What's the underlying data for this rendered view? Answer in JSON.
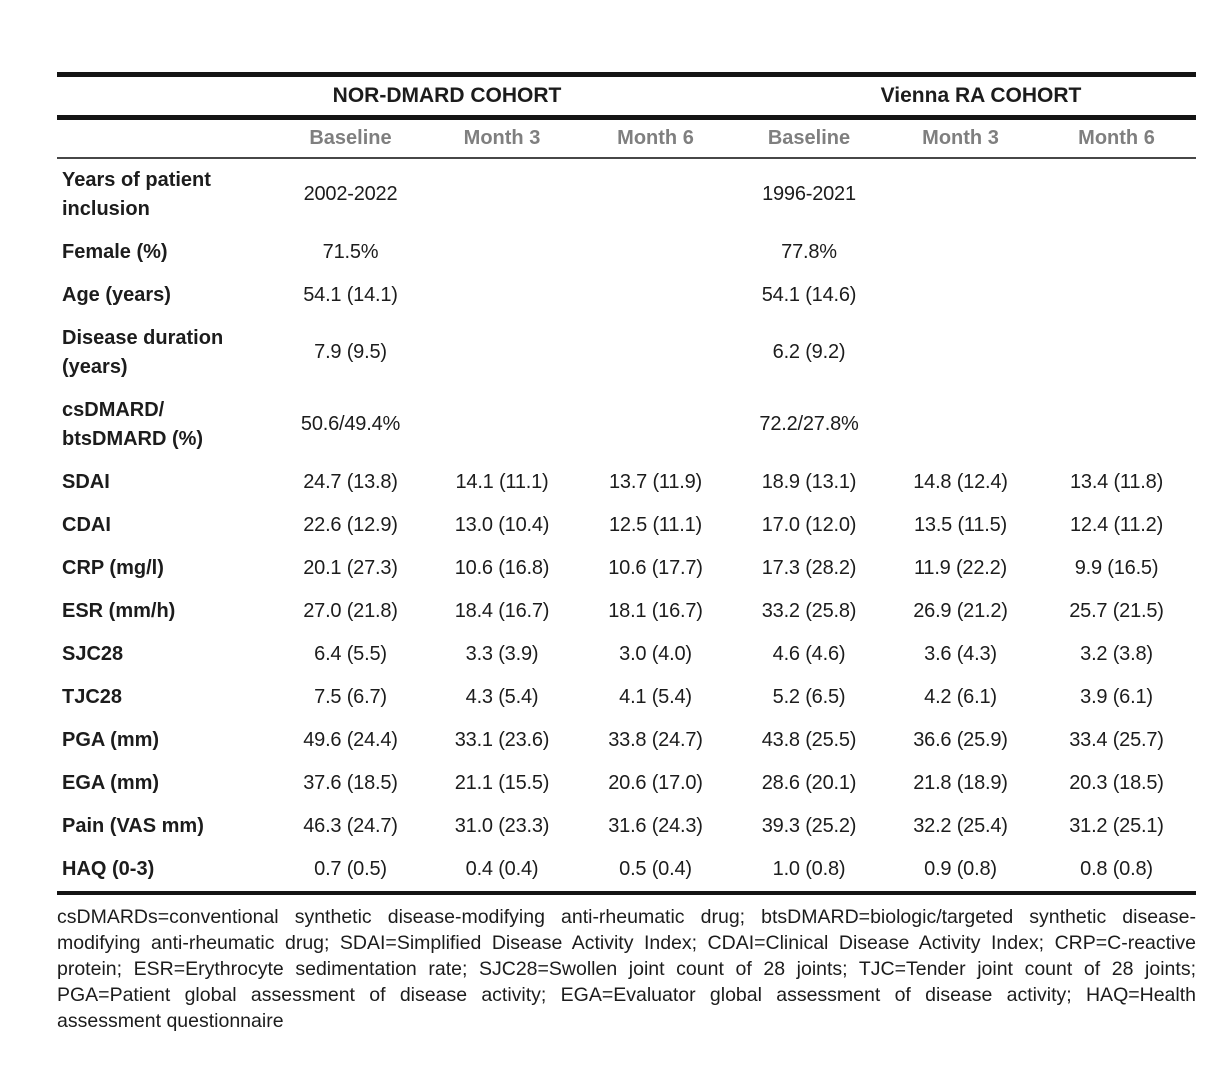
{
  "table": {
    "cohort_headers": [
      {
        "label": "NOR-DMARD COHORT"
      },
      {
        "label": "Vienna RA COHORT"
      }
    ],
    "column_headers": [
      "Baseline",
      "Month 3",
      "Month 6",
      "Baseline",
      "Month 3",
      "Month 6"
    ],
    "rows": [
      {
        "label": "Years of patient\ninclusion",
        "values": [
          "2002-2022",
          "",
          "",
          "1996-2021",
          "",
          ""
        ]
      },
      {
        "label": "Female (%)",
        "values": [
          "71.5%",
          "",
          "",
          "77.8%",
          "",
          ""
        ]
      },
      {
        "label": "Age (years)",
        "values": [
          "54.1 (14.1)",
          "",
          "",
          "54.1 (14.6)",
          "",
          ""
        ]
      },
      {
        "label": "Disease duration\n(years)",
        "values": [
          "7.9 (9.5)",
          "",
          "",
          "6.2 (9.2)",
          "",
          ""
        ]
      },
      {
        "label": "csDMARD/\nbtsDMARD (%)",
        "values": [
          "50.6/49.4%",
          "",
          "",
          "72.2/27.8%",
          "",
          ""
        ]
      },
      {
        "label": "SDAI",
        "values": [
          "24.7 (13.8)",
          "14.1 (11.1)",
          "13.7 (11.9)",
          "18.9 (13.1)",
          "14.8 (12.4)",
          "13.4 (11.8)"
        ]
      },
      {
        "label": "CDAI",
        "values": [
          "22.6 (12.9)",
          "13.0 (10.4)",
          "12.5 (11.1)",
          "17.0 (12.0)",
          "13.5 (11.5)",
          "12.4 (11.2)"
        ]
      },
      {
        "label": "CRP (mg/l)",
        "values": [
          "20.1 (27.3)",
          "10.6 (16.8)",
          "10.6 (17.7)",
          "17.3 (28.2)",
          "11.9 (22.2)",
          "9.9 (16.5)"
        ]
      },
      {
        "label": "ESR (mm/h)",
        "values": [
          "27.0 (21.8)",
          "18.4 (16.7)",
          "18.1 (16.7)",
          "33.2 (25.8)",
          "26.9 (21.2)",
          "25.7 (21.5)"
        ]
      },
      {
        "label": "SJC28",
        "values": [
          "6.4 (5.5)",
          "3.3 (3.9)",
          "3.0 (4.0)",
          "4.6 (4.6)",
          "3.6 (4.3)",
          "3.2 (3.8)"
        ]
      },
      {
        "label": "TJC28",
        "values": [
          "7.5 (6.7)",
          "4.3 (5.4)",
          "4.1 (5.4)",
          "5.2 (6.5)",
          "4.2 (6.1)",
          "3.9 (6.1)"
        ]
      },
      {
        "label": "PGA (mm)",
        "values": [
          "49.6 (24.4)",
          "33.1 (23.6)",
          "33.8 (24.7)",
          "43.8 (25.5)",
          "36.6 (25.9)",
          "33.4 (25.7)"
        ]
      },
      {
        "label": "EGA (mm)",
        "values": [
          "37.6 (18.5)",
          "21.1 (15.5)",
          "20.6 (17.0)",
          "28.6 (20.1)",
          "21.8 (18.9)",
          "20.3 (18.5)"
        ]
      },
      {
        "label": "Pain (VAS mm)",
        "values": [
          "46.3 (24.7)",
          "31.0 (23.3)",
          "31.6 (24.3)",
          "39.3 (25.2)",
          "32.2 (25.4)",
          "31.2 (25.1)"
        ]
      },
      {
        "label": "HAQ (0-3)",
        "values": [
          "0.7 (0.5)",
          "0.4 (0.4)",
          "0.5 (0.4)",
          "1.0 (0.8)",
          "0.9 (0.8)",
          "0.8 (0.8)"
        ]
      }
    ]
  },
  "footnote": "csDMARDs=conventional synthetic disease-modifying anti-rheumatic drug; btsDMARD=biologic/targeted synthetic disease-modifying anti-rheumatic drug; SDAI=Simplified Disease Activity Index; CDAI=Clinical Disease Activity Index; CRP=C-reactive protein; ESR=Erythrocyte sedimentation rate; SJC28=Swollen joint count of 28 joints; TJC=Tender joint count of 28 joints; PGA=Patient global assessment of disease activity; EGA=Evaluator global assessment of disease activity; HAQ=Health assessment questionnaire",
  "colors": {
    "text": "#1c1c1c",
    "muted_header": "#7f7f7f",
    "rule": "#141414"
  }
}
